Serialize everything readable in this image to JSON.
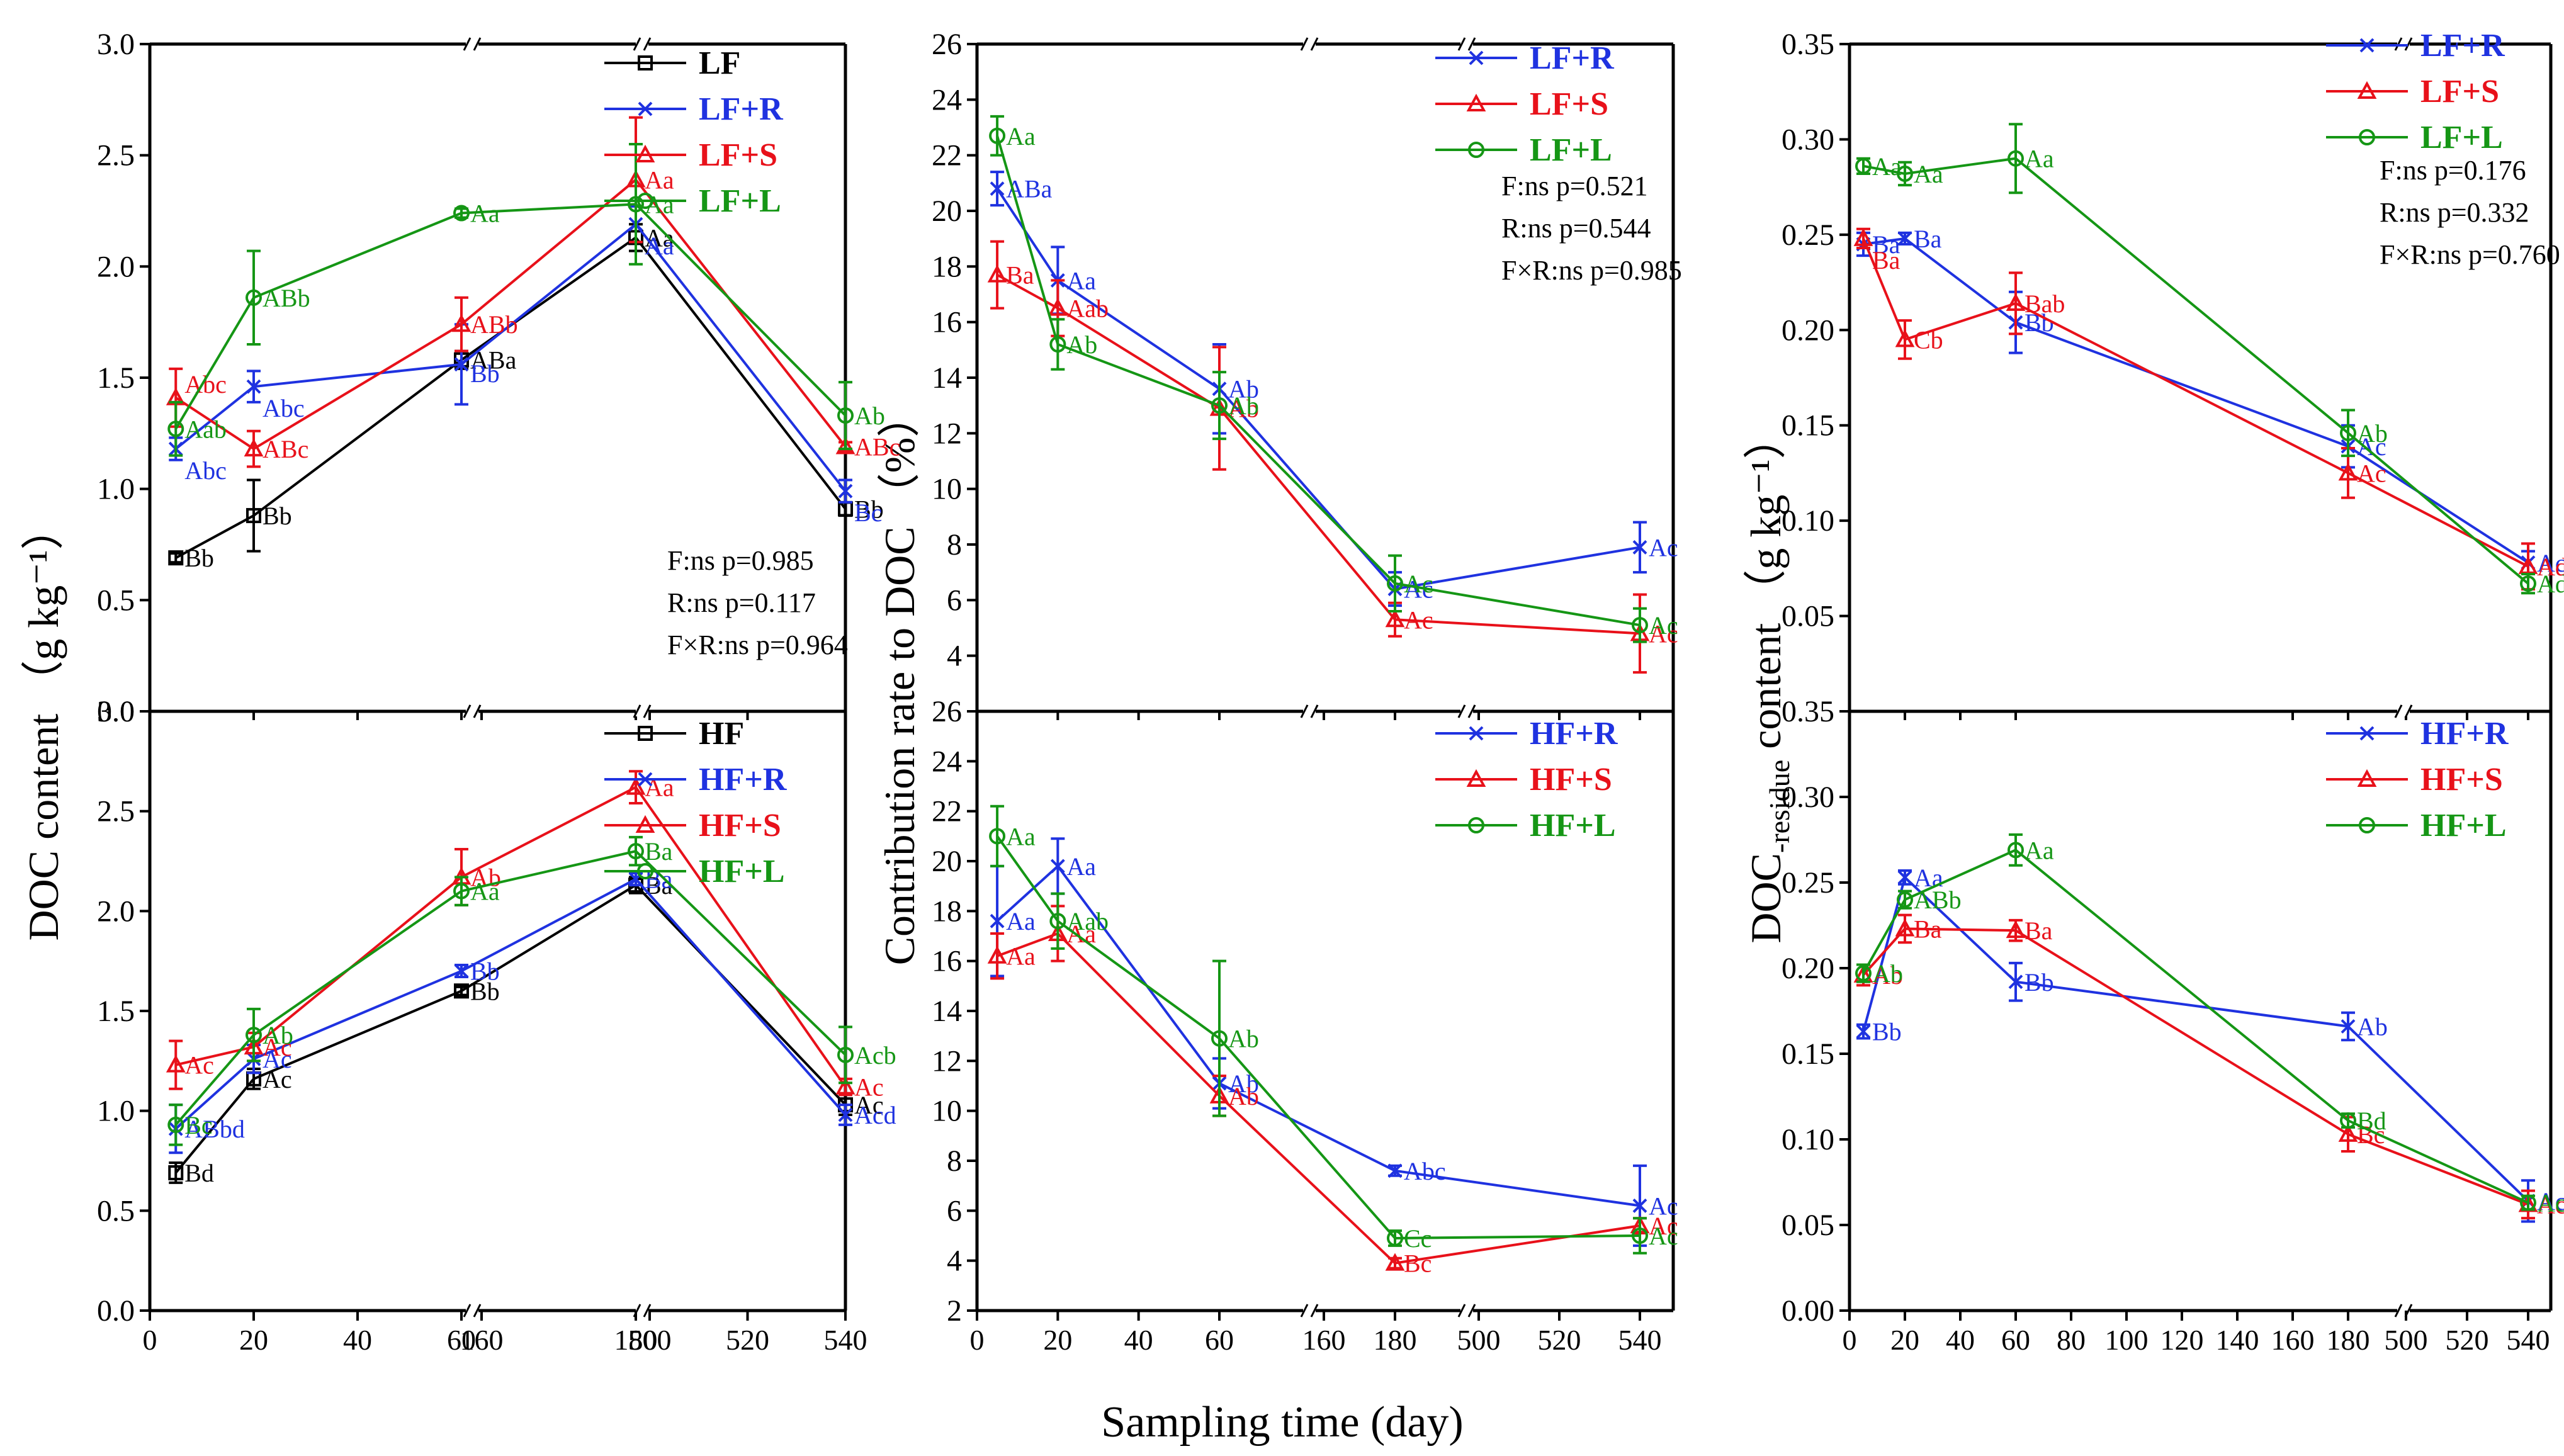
{
  "figure": {
    "x_label": "Sampling time (day)",
    "y_label_left": "DOC content  （g kg⁻¹）",
    "y_label_mid": "Contribution rate to DOC （%）",
    "y_label_right_main": "DOC",
    "y_label_right_sub": "-residue",
    "y_label_right_tail": " content （g kg⁻¹）"
  },
  "colors": {
    "black": "#000000",
    "R": "#1f32e0",
    "S": "#e8111a",
    "L": "#159615"
  },
  "chart_data": [
    {
      "id": "A",
      "type": "line",
      "ylim": [
        0,
        3.0
      ],
      "y_ticks": [
        "0.0",
        "0.5",
        "1.0",
        "1.5",
        "2.0",
        "2.5",
        "3.0"
      ],
      "x_tick_labels": [],
      "legend": [
        "LF",
        "LF+R",
        "LF+S",
        "LF+L"
      ],
      "stats": [
        "F:ns p=0.985",
        "R:ns p=0.117",
        "F×R:ns p=0.964"
      ],
      "series": [
        {
          "name": "LF",
          "marker": "square",
          "color": "#000000",
          "points": [
            [
              5,
              0.69,
              0.02,
              "Bb"
            ],
            [
              20,
              0.88,
              0.16,
              "Bb"
            ],
            [
              60,
              1.58,
              0.04,
              "ABa"
            ],
            [
              180,
              2.13,
              0.06,
              "Aa"
            ],
            [
              540,
              0.91,
              0.03,
              "Bb"
            ]
          ]
        },
        {
          "name": "LF+R",
          "marker": "x",
          "color": "#1f32e0",
          "points": [
            [
              5,
              1.18,
              0.05,
              "Abc"
            ],
            [
              20,
              1.46,
              0.07,
              "Abc"
            ],
            [
              60,
              1.56,
              0.18,
              "Bb"
            ],
            [
              180,
              2.19,
              0.08,
              "Aa"
            ],
            [
              540,
              0.99,
              0.05,
              "Bc"
            ]
          ]
        },
        {
          "name": "LF+S",
          "marker": "triangle",
          "color": "#e8111a",
          "points": [
            [
              5,
              1.41,
              0.13,
              "Abc"
            ],
            [
              20,
              1.18,
              0.08,
              "ABc"
            ],
            [
              60,
              1.74,
              0.12,
              "ABb"
            ],
            [
              180,
              2.39,
              0.28,
              "Aa"
            ],
            [
              540,
              1.19,
              0.02,
              "ABc"
            ]
          ]
        },
        {
          "name": "LF+L",
          "marker": "circle",
          "color": "#159615",
          "points": [
            [
              5,
              1.27,
              0.12,
              "Aab"
            ],
            [
              20,
              1.86,
              0.21,
              "ABb"
            ],
            [
              60,
              2.24,
              0.02,
              "Aa"
            ],
            [
              180,
              2.28,
              0.27,
              "Aa"
            ],
            [
              540,
              1.33,
              0.15,
              "Ab"
            ]
          ]
        }
      ]
    },
    {
      "id": "D",
      "type": "line",
      "ylim": [
        0,
        3.0
      ],
      "y_ticks": [
        "0.0",
        "0.5",
        "1.0",
        "1.5",
        "2.0",
        "2.5",
        "3.0"
      ],
      "x_tick_labels": [
        "0",
        "20",
        "40",
        "60",
        "160",
        "180",
        "500",
        "520",
        "540"
      ],
      "legend": [
        "HF",
        "HF+R",
        "HF+S",
        "HF+L"
      ],
      "stats": [],
      "series": [
        {
          "name": "HF",
          "marker": "square",
          "color": "#000000",
          "points": [
            [
              5,
              0.69,
              0.05,
              "Bd"
            ],
            [
              20,
              1.16,
              0.05,
              "Ac"
            ],
            [
              60,
              1.6,
              0.02,
              "Bb"
            ],
            [
              180,
              2.13,
              0.04,
              "Ba"
            ],
            [
              540,
              1.03,
              0.05,
              "Ac"
            ]
          ]
        },
        {
          "name": "HF+R",
          "marker": "x",
          "color": "#1f32e0",
          "points": [
            [
              5,
              0.91,
              0.12,
              "ABbd"
            ],
            [
              20,
              1.26,
              0.07,
              "Ac"
            ],
            [
              60,
              1.7,
              0.03,
              "Bb"
            ],
            [
              180,
              2.16,
              0.03,
              "Ba"
            ],
            [
              540,
              0.98,
              0.05,
              "Acd"
            ]
          ]
        },
        {
          "name": "HF+S",
          "marker": "triangle",
          "color": "#e8111a",
          "points": [
            [
              5,
              1.23,
              0.12,
              "Ac"
            ],
            [
              20,
              1.32,
              0.07,
              "Ac"
            ],
            [
              60,
              2.17,
              0.14,
              "Ab"
            ],
            [
              180,
              2.62,
              0.08,
              "Aa"
            ],
            [
              540,
              1.12,
              0.04,
              "Ac"
            ]
          ]
        },
        {
          "name": "HF+L",
          "marker": "circle",
          "color": "#159615",
          "points": [
            [
              5,
              0.93,
              0.1,
              "Bc"
            ],
            [
              20,
              1.38,
              0.13,
              "Ab"
            ],
            [
              60,
              2.1,
              0.07,
              "Aa"
            ],
            [
              180,
              2.3,
              0.07,
              "Ba"
            ],
            [
              540,
              1.28,
              0.14,
              "Acb"
            ]
          ]
        }
      ]
    },
    {
      "id": "B",
      "type": "line",
      "ylim": [
        2,
        26
      ],
      "y_ticks": [
        "4",
        "6",
        "8",
        "10",
        "12",
        "14",
        "16",
        "18",
        "20",
        "22",
        "24",
        "26"
      ],
      "x_tick_labels": [],
      "legend": [
        "LF+R",
        "LF+S",
        "LF+L"
      ],
      "stats": [
        "F:ns p=0.521",
        "R:ns p=0.544",
        "F×R:ns p=0.985"
      ],
      "series": [
        {
          "name": "LF+R",
          "marker": "x",
          "color": "#1f32e0",
          "points": [
            [
              5,
              20.8,
              0.6,
              "ABa"
            ],
            [
              20,
              17.5,
              1.2,
              "Aa"
            ],
            [
              60,
              13.6,
              1.6,
              "Ab"
            ],
            [
              180,
              6.4,
              0.6,
              "Ac"
            ],
            [
              540,
              7.9,
              0.9,
              "Ac"
            ]
          ]
        },
        {
          "name": "LF+S",
          "marker": "triangle",
          "color": "#e8111a",
          "points": [
            [
              5,
              17.7,
              1.2,
              "Ba"
            ],
            [
              20,
              16.5,
              1.0,
              "Aab"
            ],
            [
              60,
              12.9,
              2.2,
              "Ab"
            ],
            [
              180,
              5.3,
              0.6,
              "Ac"
            ],
            [
              540,
              4.8,
              1.4,
              "Ac"
            ]
          ]
        },
        {
          "name": "LF+L",
          "marker": "circle",
          "color": "#159615",
          "points": [
            [
              5,
              22.7,
              0.7,
              "Aa"
            ],
            [
              20,
              15.2,
              0.9,
              "Ab"
            ],
            [
              60,
              13.0,
              1.2,
              "Ab"
            ],
            [
              180,
              6.6,
              1.0,
              "Ac"
            ],
            [
              540,
              5.1,
              0.6,
              "Ac"
            ]
          ]
        }
      ]
    },
    {
      "id": "E",
      "type": "line",
      "ylim": [
        2,
        26
      ],
      "y_ticks": [
        "2",
        "4",
        "6",
        "8",
        "10",
        "12",
        "14",
        "16",
        "18",
        "20",
        "22",
        "24",
        "26"
      ],
      "x_tick_labels": [
        "0",
        "20",
        "40",
        "60",
        "160",
        "180",
        "500",
        "520",
        "540"
      ],
      "legend": [
        "HF+R",
        "HF+S",
        "HF+L"
      ],
      "stats": [],
      "series": [
        {
          "name": "HF+R",
          "marker": "x",
          "color": "#1f32e0",
          "points": [
            [
              5,
              17.6,
              2.2,
              "Aa"
            ],
            [
              20,
              19.8,
              1.1,
              "Aa"
            ],
            [
              60,
              11.1,
              1.0,
              "Ab"
            ],
            [
              180,
              7.6,
              0.2,
              "Abc"
            ],
            [
              540,
              6.2,
              1.6,
              "Ac"
            ]
          ]
        },
        {
          "name": "HF+S",
          "marker": "triangle",
          "color": "#e8111a",
          "points": [
            [
              5,
              16.2,
              0.9,
              "Aa"
            ],
            [
              20,
              17.1,
              1.1,
              "Aa"
            ],
            [
              60,
              10.6,
              0.8,
              "Ab"
            ],
            [
              180,
              3.9,
              0.2,
              "Bc"
            ],
            [
              540,
              5.4,
              0.3,
              "Ac"
            ]
          ]
        },
        {
          "name": "HF+L",
          "marker": "circle",
          "color": "#159615",
          "points": [
            [
              5,
              21.0,
              1.2,
              "Aa"
            ],
            [
              20,
              17.6,
              1.1,
              "Aab"
            ],
            [
              60,
              12.9,
              3.1,
              "Ab"
            ],
            [
              180,
              4.9,
              0.3,
              "Cc"
            ],
            [
              540,
              5.0,
              0.7,
              "Ac"
            ]
          ]
        }
      ]
    },
    {
      "id": "C",
      "type": "line",
      "ylim": [
        0,
        0.35
      ],
      "y_ticks": [
        "0.05",
        "0.10",
        "0.15",
        "0.20",
        "0.25",
        "0.30",
        "0.35"
      ],
      "x_tick_labels": [],
      "legend": [
        "LF+R",
        "LF+S",
        "LF+L"
      ],
      "stats": [
        "F:ns p=0.176",
        "R:ns p=0.332",
        "F×R:ns p=0.760"
      ],
      "series": [
        {
          "name": "LF+R",
          "marker": "x",
          "color": "#1f32e0",
          "points": [
            [
              5,
              0.245,
              0.006,
              "Ba"
            ],
            [
              20,
              0.248,
              0.003,
              "Ba"
            ],
            [
              60,
              0.204,
              0.016,
              "Bb"
            ],
            [
              180,
              0.139,
              0.011,
              "Ac"
            ],
            [
              540,
              0.078,
              0.006,
              "Ac"
            ]
          ]
        },
        {
          "name": "LF+S",
          "marker": "triangle",
          "color": "#e8111a",
          "points": [
            [
              5,
              0.248,
              0.005,
              "Ba"
            ],
            [
              20,
              0.195,
              0.01,
              "Cb"
            ],
            [
              60,
              0.214,
              0.016,
              "Bab"
            ],
            [
              180,
              0.125,
              0.013,
              "Ac"
            ],
            [
              540,
              0.076,
              0.012,
              "Ad"
            ]
          ]
        },
        {
          "name": "LF+L",
          "marker": "circle",
          "color": "#159615",
          "points": [
            [
              5,
              0.286,
              0.004,
              "Aa"
            ],
            [
              20,
              0.282,
              0.006,
              "Aa"
            ],
            [
              60,
              0.29,
              0.018,
              "Aa"
            ],
            [
              180,
              0.146,
              0.012,
              "Ab"
            ],
            [
              540,
              0.067,
              0.005,
              "Ad"
            ]
          ]
        }
      ]
    },
    {
      "id": "F",
      "type": "line",
      "ylim": [
        0,
        0.35
      ],
      "y_ticks": [
        "0.00",
        "0.05",
        "0.10",
        "0.15",
        "0.20",
        "0.25",
        "0.30",
        "0.35"
      ],
      "x_tick_labels": [
        "0",
        "20",
        "40",
        "60",
        "80",
        "100",
        "120",
        "140",
        "160",
        "180",
        "500",
        "520",
        "540"
      ],
      "legend": [
        "HF+R",
        "HF+S",
        "HF+L"
      ],
      "stats": [],
      "series": [
        {
          "name": "HF+R",
          "marker": "x",
          "color": "#1f32e0",
          "points": [
            [
              5,
              0.163,
              0.004,
              "Bb"
            ],
            [
              20,
              0.253,
              0.004,
              "Aa"
            ],
            [
              60,
              0.192,
              0.011,
              "Bb"
            ],
            [
              180,
              0.166,
              0.008,
              "Ab"
            ],
            [
              540,
              0.064,
              0.012,
              "Ac"
            ]
          ]
        },
        {
          "name": "HF+S",
          "marker": "triangle",
          "color": "#e8111a",
          "points": [
            [
              5,
              0.196,
              0.006,
              "Ab"
            ],
            [
              20,
              0.223,
              0.008,
              "Ba"
            ],
            [
              60,
              0.222,
              0.006,
              "Ba"
            ],
            [
              180,
              0.103,
              0.01,
              "Bc"
            ],
            [
              540,
              0.062,
              0.008,
              "Ac"
            ]
          ]
        },
        {
          "name": "HF+L",
          "marker": "circle",
          "color": "#159615",
          "points": [
            [
              5,
              0.197,
              0.005,
              "Ab"
            ],
            [
              20,
              0.24,
              0.005,
              "ABb"
            ],
            [
              60,
              0.269,
              0.009,
              "Aa"
            ],
            [
              180,
              0.111,
              0.004,
              "Bd"
            ],
            [
              540,
              0.063,
              0.004,
              "Ac"
            ]
          ]
        }
      ]
    }
  ]
}
